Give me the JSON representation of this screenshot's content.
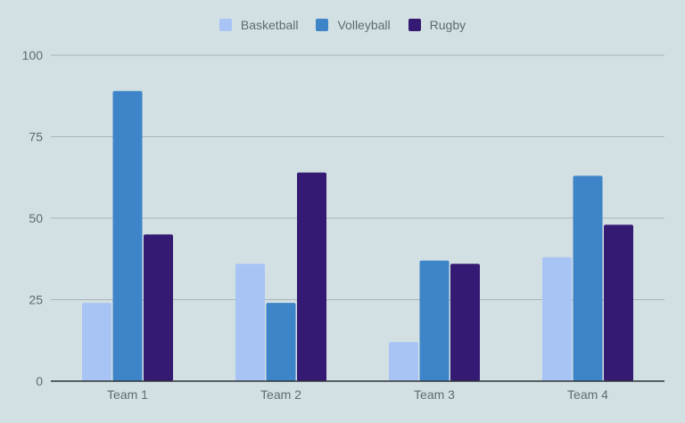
{
  "chart_data": {
    "type": "bar",
    "title": "",
    "xlabel": "",
    "ylabel": "",
    "categories": [
      "Team 1",
      "Team 2",
      "Team 3",
      "Team 4"
    ],
    "series": [
      {
        "name": "Basketball",
        "color": "#a8c4f5",
        "values": [
          24,
          36,
          12,
          38
        ]
      },
      {
        "name": "Volleyball",
        "color": "#3e84c8",
        "values": [
          89,
          24,
          37,
          63
        ]
      },
      {
        "name": "Rugby",
        "color": "#341a73",
        "values": [
          45,
          64,
          36,
          48
        ]
      }
    ],
    "ylim": [
      0,
      100
    ],
    "yticks": [
      0,
      25,
      50,
      75,
      100
    ],
    "grid": true,
    "legend_position": "top"
  },
  "colors": {
    "background": "#d2e0e3",
    "gridline": "#a9b5b8",
    "axis": "#2d3436",
    "text": "#5f6b6e"
  }
}
